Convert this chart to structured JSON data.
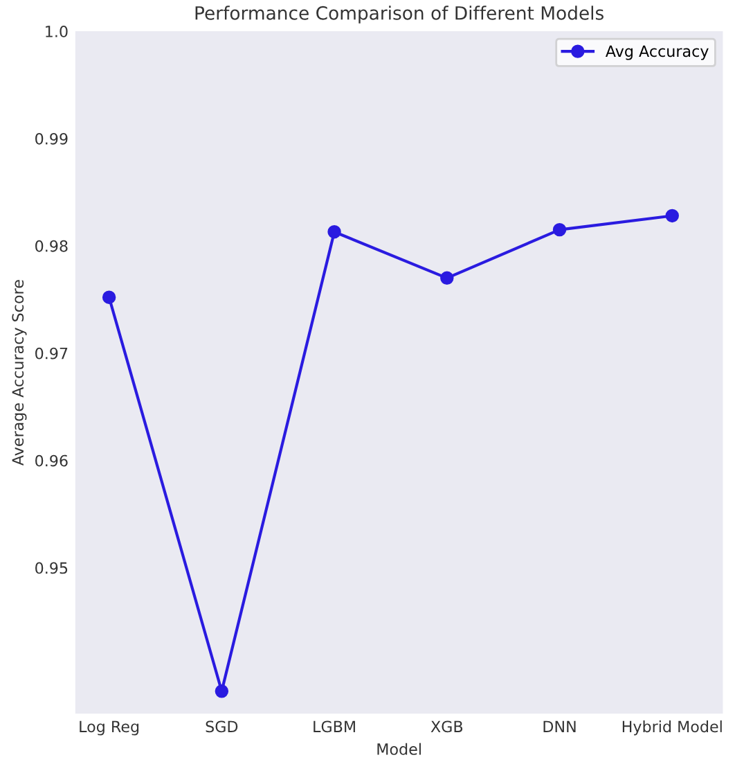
{
  "chart_data": {
    "type": "line",
    "title": "Performance Comparison of Different Models",
    "xlabel": "Model",
    "ylabel": "Average Accuracy Score",
    "categories": [
      "Log Reg",
      "SGD",
      "LGBM",
      "XGB",
      "DNN",
      "Hybrid Model"
    ],
    "series": [
      {
        "name": "Avg Accuracy",
        "color": "#2a1be0",
        "values": [
          0.9752,
          0.9385,
          0.9813,
          0.977,
          0.9815,
          0.9828
        ]
      }
    ],
    "ylim": [
      0.9364,
      1.0
    ],
    "yticks": [
      0.95,
      0.96,
      0.97,
      0.98,
      0.99,
      {
        "value": 1.0,
        "label": "1.0"
      }
    ],
    "grid": false,
    "legend": "top right",
    "marker": "circle",
    "line_style": "solid"
  }
}
